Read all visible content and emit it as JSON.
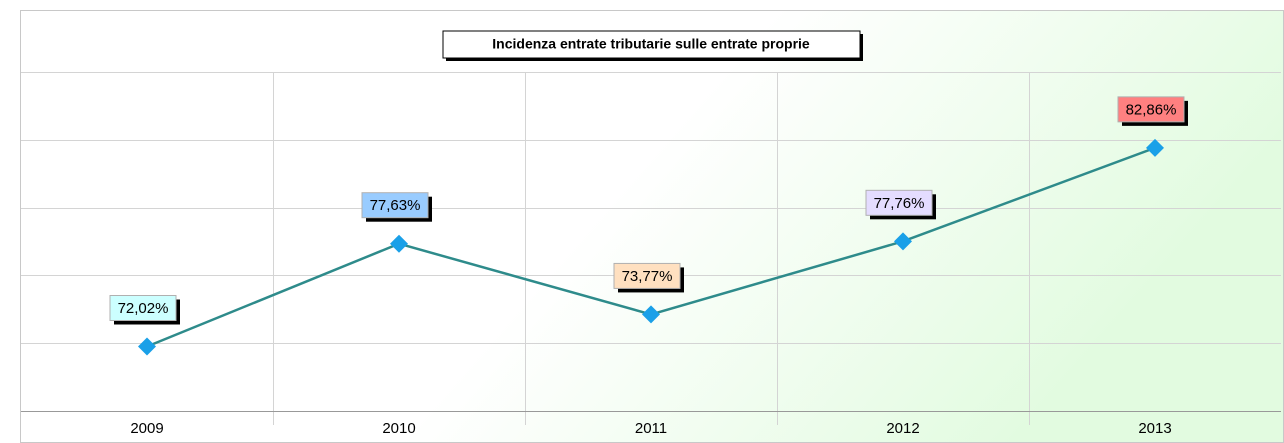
{
  "chart_data": {
    "type": "line",
    "title": "Incidenza entrate tributarie sulle entrate proprie",
    "categories": [
      "2009",
      "2010",
      "2011",
      "2012",
      "2013"
    ],
    "values": [
      72.02,
      77.63,
      73.77,
      77.76,
      82.86
    ],
    "value_labels": [
      "72,02%",
      "77,63%",
      "73,77%",
      "77,76%",
      "82,86%"
    ],
    "label_colors": [
      "#ccffff",
      "#99ccff",
      "#ffe0c0",
      "#e4dcff",
      "#ff8080"
    ],
    "color": "#2e8b8b",
    "marker_color": "#1aa0e8",
    "ylim": [
      68.5,
      87.0
    ],
    "yticks": [
      68.5,
      72.2,
      75.9,
      79.6,
      83.3,
      87.0
    ],
    "grid": true
  }
}
